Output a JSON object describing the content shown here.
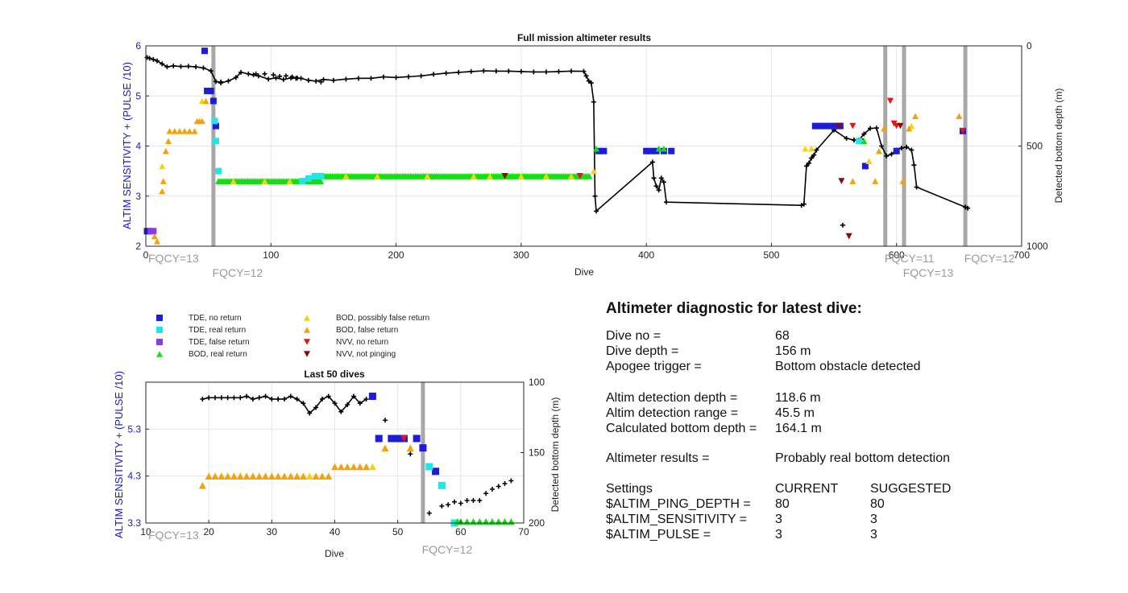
{
  "colors": {
    "tde_no_return": "#1c1cd9",
    "tde_real_return": "#22e6e6",
    "tde_false_return": "#8a3ae0",
    "bod_real_return": "#12e012",
    "bod_possibly_false": "#f2d60c",
    "bod_false": "#f2a30c",
    "nvv_no_return": "#ee1111",
    "nvv_not_pinging": "#8a0a0a",
    "depth_trace": "#000000",
    "fqcy_line": "#a8a8a8"
  },
  "legend": [
    {
      "key": "tde_no_return",
      "marker": "square",
      "label": "TDE, no return"
    },
    {
      "key": "tde_real_return",
      "marker": "square",
      "label": "TDE, real return"
    },
    {
      "key": "tde_false_return",
      "marker": "square",
      "label": "TDE, false return"
    },
    {
      "key": "bod_real_return",
      "marker": "triangle-up",
      "label": "BOD, real return"
    },
    {
      "key": "bod_possibly_false",
      "marker": "triangle-up",
      "label": "BOD, possibly false return"
    },
    {
      "key": "bod_false",
      "marker": "triangle-up",
      "label": "BOD, false return"
    },
    {
      "key": "nvv_no_return",
      "marker": "triangle-down",
      "label": "NVV, no return"
    },
    {
      "key": "nvv_not_pinging",
      "marker": "triangle-down",
      "label": "NVV, not pinging"
    }
  ],
  "chart_data": [
    {
      "type": "scatter",
      "title": "Full mission altimeter results",
      "xlabel": "Dive",
      "ylabel": "ALTIM SENSITIVITY + (PULSE /10)",
      "y2label": "Detected bottom depth (m)",
      "xlim": [
        0,
        700
      ],
      "ylim": [
        2,
        6
      ],
      "y2lim": [
        1000,
        0
      ],
      "xticks": [
        0,
        100,
        200,
        300,
        400,
        500,
        600,
        700
      ],
      "yticks": [
        2,
        3,
        4,
        5,
        6
      ],
      "y2ticks": [
        0,
        500,
        1000
      ],
      "grid": true,
      "fqcy": [
        {
          "dive": 54,
          "label": "FQCY=13",
          "row": 0,
          "align": "left-at-axis"
        },
        {
          "dive": 54,
          "label": "FQCY=12",
          "row": 1
        },
        {
          "dive": 591,
          "label": "FQCY=11",
          "row": 0
        },
        {
          "dive": 606,
          "label": "FQCY=13",
          "row": 1
        },
        {
          "dive": 655,
          "label": "FQCY=12",
          "row": 0
        }
      ],
      "points": {
        "tde_no_return": [
          [
            1,
            2.3
          ],
          [
            3,
            2.3
          ],
          [
            47,
            5.9
          ],
          [
            49,
            5.1
          ],
          [
            50,
            5.1
          ],
          [
            51,
            5.1
          ],
          [
            52,
            5.1
          ],
          [
            54,
            4.9
          ],
          [
            56,
            4.4
          ],
          [
            362,
            3.9
          ],
          [
            366,
            3.9
          ],
          [
            400,
            3.9
          ],
          [
            404,
            3.9
          ],
          [
            408,
            3.9
          ],
          [
            414,
            3.9
          ],
          [
            420,
            3.9
          ],
          [
            535,
            4.4
          ],
          [
            540,
            4.4
          ],
          [
            545,
            4.4
          ],
          [
            550,
            4.4
          ],
          [
            555,
            4.4
          ],
          [
            575,
            3.6
          ],
          [
            600,
            3.9
          ],
          [
            653,
            4.3
          ]
        ],
        "tde_real_return": [
          [
            55,
            4.5
          ],
          [
            56,
            4.1
          ],
          [
            58,
            3.5
          ],
          [
            125,
            3.3
          ],
          [
            130,
            3.35
          ],
          [
            135,
            3.4
          ],
          [
            140,
            3.4
          ],
          [
            570,
            4.1
          ]
        ],
        "tde_false_return": [
          [
            4,
            2.3
          ],
          [
            6,
            2.3
          ]
        ],
        "bod_real_return": [
          [
            360,
            3.95
          ],
          [
            410,
            3.95
          ],
          [
            414,
            3.95
          ],
          [
            574,
            4.1
          ]
        ],
        "bod_possibly_false": [
          [
            13,
            3.6
          ],
          [
            45,
            4.9
          ],
          [
            358,
            3.5
          ],
          [
            527,
            3.95
          ],
          [
            532,
            3.95
          ],
          [
            578,
            3.7
          ],
          [
            612,
            4.4
          ]
        ],
        "bod_false": [
          [
            7,
            2.2
          ],
          [
            9,
            2.1
          ],
          [
            13,
            3.1
          ],
          [
            14,
            3.3
          ],
          [
            16,
            3.9
          ],
          [
            18,
            4.1
          ],
          [
            19,
            4.3
          ],
          [
            23,
            4.3
          ],
          [
            27,
            4.3
          ],
          [
            31,
            4.3
          ],
          [
            35,
            4.3
          ],
          [
            39,
            4.3
          ],
          [
            41,
            4.5
          ],
          [
            43,
            4.5
          ],
          [
            45,
            4.5
          ],
          [
            48,
            4.9
          ],
          [
            565,
            3.3
          ],
          [
            583,
            3.3
          ],
          [
            586,
            3.9
          ],
          [
            590,
            4.35
          ],
          [
            605,
            3.3
          ],
          [
            610,
            4.35
          ],
          [
            615,
            4.6
          ],
          [
            650,
            4.6
          ]
        ],
        "nvv_no_return": [
          [
            347,
            3.4
          ],
          [
            565,
            4.4
          ],
          [
            595,
            4.9
          ],
          [
            598,
            4.45
          ],
          [
            600,
            4.4
          ],
          [
            653,
            4.3
          ]
        ],
        "nvv_not_pinging": [
          [
            287,
            3.4
          ],
          [
            554,
            4.4
          ],
          [
            556,
            3.3
          ],
          [
            562,
            2.2
          ],
          [
            603,
            4.4
          ]
        ]
      },
      "bod_band": {
        "x0": 58,
        "x1": 355
      },
      "depth": [
        [
          1,
          58
        ],
        [
          3,
          62
        ],
        [
          6,
          68
        ],
        [
          9,
          75
        ],
        [
          13,
          90
        ],
        [
          17,
          105
        ],
        [
          22,
          100
        ],
        [
          28,
          103
        ],
        [
          34,
          102
        ],
        [
          40,
          105
        ],
        [
          46,
          110
        ],
        [
          52,
          125
        ],
        [
          56,
          178
        ],
        [
          60,
          185
        ],
        [
          66,
          175
        ],
        [
          72,
          158
        ],
        [
          76,
          132
        ],
        [
          82,
          140
        ],
        [
          86,
          145
        ],
        [
          90,
          150
        ],
        [
          98,
          166
        ],
        [
          104,
          160
        ],
        [
          110,
          168
        ],
        [
          116,
          160
        ],
        [
          120,
          162
        ],
        [
          124,
          162
        ],
        [
          130,
          172
        ],
        [
          136,
          176
        ],
        [
          142,
          168
        ],
        [
          150,
          172
        ],
        [
          160,
          166
        ],
        [
          170,
          162
        ],
        [
          180,
          162
        ],
        [
          190,
          155
        ],
        [
          200,
          158
        ],
        [
          210,
          154
        ],
        [
          220,
          150
        ],
        [
          230,
          142
        ],
        [
          240,
          136
        ],
        [
          250,
          132
        ],
        [
          260,
          128
        ],
        [
          270,
          125
        ],
        [
          280,
          126
        ],
        [
          290,
          126
        ],
        [
          300,
          128
        ],
        [
          310,
          130
        ],
        [
          320,
          130
        ],
        [
          330,
          128
        ],
        [
          340,
          126
        ],
        [
          350,
          127
        ],
        [
          352,
          150
        ],
        [
          354,
          175
        ],
        [
          356,
          185
        ],
        [
          358,
          280
        ],
        [
          359,
          750
        ],
        [
          360,
          825
        ],
        [
          405,
          580
        ],
        [
          406,
          660
        ],
        [
          408,
          700
        ],
        [
          410,
          720
        ],
        [
          412,
          660
        ],
        [
          414,
          680
        ],
        [
          416,
          780
        ],
        [
          524,
          796
        ],
        [
          526,
          790
        ],
        [
          528,
          600
        ],
        [
          530,
          585
        ],
        [
          532,
          560
        ],
        [
          534,
          545
        ],
        [
          536,
          520
        ],
        [
          550,
          420
        ],
        [
          560,
          462
        ],
        [
          566,
          470
        ],
        [
          570,
          470
        ],
        [
          574,
          440
        ],
        [
          579,
          412
        ],
        [
          584,
          410
        ],
        [
          588,
          500
        ],
        [
          592,
          550
        ],
        [
          596,
          540
        ],
        [
          600,
          520
        ],
        [
          604,
          510
        ],
        [
          608,
          505
        ],
        [
          612,
          520
        ],
        [
          614,
          595
        ],
        [
          616,
          705
        ],
        [
          655,
          805
        ],
        [
          657,
          810
        ]
      ],
      "depth_extras": [
        [
          60,
          180
        ],
        [
          88,
          140
        ],
        [
          95,
          140
        ],
        [
          102,
          145
        ],
        [
          107,
          152
        ],
        [
          112,
          150
        ],
        [
          117,
          155
        ],
        [
          121,
          160
        ],
        [
          140,
          180
        ],
        [
          557,
          895
        ],
        [
          566,
          470
        ],
        [
          572,
          465
        ]
      ]
    },
    {
      "type": "scatter",
      "title": "Last 50 dives",
      "xlabel": "Dive",
      "ylabel": "ALTIM SENSITIVITY + (PULSE /10)",
      "y2label": "Detected bottom depth (m)",
      "xlim": [
        10,
        70
      ],
      "ylim": [
        3.3,
        6.3
      ],
      "y2lim": [
        200,
        100
      ],
      "xticks": [
        10,
        20,
        30,
        40,
        50,
        60,
        70
      ],
      "yticks": [
        3.3,
        4.3,
        5.3
      ],
      "y2ticks": [
        100,
        150,
        200
      ],
      "grid": true,
      "fqcy": [
        {
          "dive": 54,
          "label": "FQCY=13",
          "row": 0,
          "align": "left-at-axis"
        },
        {
          "dive": 54,
          "label": "FQCY=12",
          "row": 1
        }
      ],
      "points": {
        "tde_no_return": [
          [
            46,
            6.0
          ],
          [
            47,
            5.1
          ],
          [
            49,
            5.1
          ],
          [
            50,
            5.1
          ],
          [
            51,
            5.1
          ],
          [
            53,
            5.1
          ],
          [
            54,
            4.9
          ],
          [
            56,
            4.4
          ]
        ],
        "tde_real_return": [
          [
            55,
            4.5
          ],
          [
            57,
            4.1
          ],
          [
            59,
            3.3
          ]
        ],
        "bod_real_return": [
          [
            59.5,
            3.33
          ],
          [
            60,
            3.33
          ],
          [
            61,
            3.33
          ],
          [
            62,
            3.33
          ],
          [
            63,
            3.33
          ],
          [
            64,
            3.33
          ],
          [
            65,
            3.33
          ],
          [
            66,
            3.33
          ],
          [
            67,
            3.33
          ],
          [
            68,
            3.33
          ]
        ],
        "bod_possibly_false": [
          [
            36,
            4.3
          ],
          [
            46,
            4.5
          ]
        ],
        "bod_false": [
          [
            19,
            4.1
          ],
          [
            20,
            4.3
          ],
          [
            21,
            4.3
          ],
          [
            22,
            4.3
          ],
          [
            23,
            4.3
          ],
          [
            24,
            4.3
          ],
          [
            25,
            4.3
          ],
          [
            26,
            4.3
          ],
          [
            27,
            4.3
          ],
          [
            28,
            4.3
          ],
          [
            29,
            4.3
          ],
          [
            30,
            4.3
          ],
          [
            31,
            4.3
          ],
          [
            32,
            4.3
          ],
          [
            33,
            4.3
          ],
          [
            34,
            4.3
          ],
          [
            35,
            4.3
          ],
          [
            37,
            4.3
          ],
          [
            38,
            4.3
          ],
          [
            39,
            4.3
          ],
          [
            40,
            4.5
          ],
          [
            41,
            4.5
          ],
          [
            42,
            4.5
          ],
          [
            43,
            4.5
          ],
          [
            44,
            4.5
          ],
          [
            45,
            4.5
          ],
          [
            48,
            4.9
          ],
          [
            52,
            4.9
          ]
        ],
        "nvv_no_return": [
          [
            51,
            5.1
          ]
        ],
        "nvv_not_pinging": []
      },
      "depth": [
        [
          19,
          112
        ],
        [
          20,
          111
        ],
        [
          21,
          111
        ],
        [
          22,
          111
        ],
        [
          23,
          111
        ],
        [
          24,
          111
        ],
        [
          25,
          111
        ],
        [
          26,
          110
        ],
        [
          27,
          112
        ],
        [
          28,
          111
        ],
        [
          29,
          110
        ],
        [
          30,
          112
        ],
        [
          31,
          112
        ],
        [
          32,
          112
        ],
        [
          33,
          110
        ],
        [
          34,
          112
        ],
        [
          35,
          115
        ],
        [
          36,
          122
        ],
        [
          37,
          118
        ],
        [
          38,
          112
        ],
        [
          39,
          110
        ],
        [
          40,
          115
        ],
        [
          41,
          121
        ],
        [
          42,
          116
        ],
        [
          43,
          110
        ],
        [
          44,
          115
        ],
        [
          45,
          112
        ]
      ],
      "depth_extras": [
        [
          48,
          127
        ],
        [
          52,
          151
        ],
        [
          55,
          193
        ],
        [
          57,
          188
        ],
        [
          58,
          187
        ],
        [
          59,
          185
        ],
        [
          60,
          186
        ],
        [
          61,
          184
        ],
        [
          62,
          184
        ],
        [
          63,
          184
        ],
        [
          64,
          179
        ],
        [
          65,
          176
        ],
        [
          66,
          174
        ],
        [
          67,
          172
        ],
        [
          68,
          170
        ]
      ]
    }
  ],
  "diagnostic": {
    "title": "Altimeter diagnostic for latest dive:",
    "rows": [
      {
        "label": "Dive no =",
        "value": "68"
      },
      {
        "label": "Dive depth =",
        "value": "156 m"
      },
      {
        "label": "Apogee trigger =",
        "value": "Bottom obstacle detected"
      },
      {
        "label": "Altim detection depth =",
        "value": "118.6 m"
      },
      {
        "label": "Altim detection range =",
        "value": "45.5 m"
      },
      {
        "label": "Calculated bottom depth =",
        "value": "164.1 m"
      },
      {
        "label": "Altimeter results =",
        "value": "Probably real bottom detection"
      }
    ],
    "settings_header": {
      "label": "Settings",
      "current": "CURRENT",
      "suggested": "SUGGESTED"
    },
    "settings": [
      {
        "label": "$ALTIM_PING_DEPTH =",
        "current": "80",
        "suggested": "80"
      },
      {
        "label": "$ALTIM_SENSITIVITY =",
        "current": "3",
        "suggested": "3"
      },
      {
        "label": "$ALTIM_PULSE =",
        "current": "3",
        "suggested": "3"
      }
    ]
  }
}
